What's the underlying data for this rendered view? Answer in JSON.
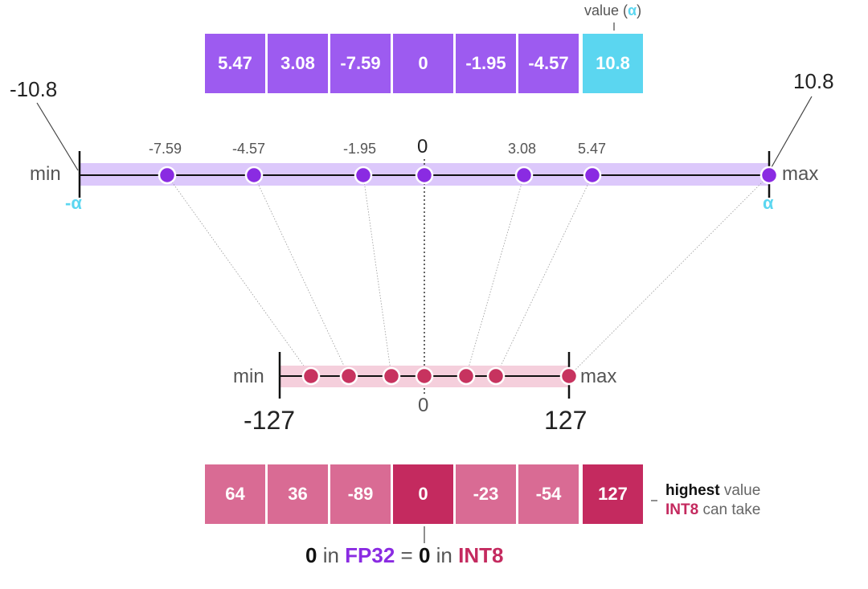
{
  "top_note": {
    "text": "value (",
    "alpha": "α",
    "close": ")"
  },
  "fp32_cells": [
    "5.47",
    "3.08",
    "-7.59",
    "0",
    "-1.95",
    "-4.57",
    "10.8"
  ],
  "int8_cells": [
    "64",
    "36",
    "-89",
    "0",
    "-23",
    "-54",
    "127"
  ],
  "fp32_axis": {
    "min_value": "-10.8",
    "max_value": "10.8",
    "min_label": "min",
    "max_label": "max",
    "neg_alpha": "-α",
    "pos_alpha": "α",
    "zero": "0",
    "tick_values": [
      "-7.59",
      "-4.57",
      "-1.95",
      "3.08",
      "5.47"
    ]
  },
  "int8_axis": {
    "min_label": "min",
    "max_label": "max",
    "min_value": "-127",
    "max_value": "127",
    "zero": "0"
  },
  "int8_note": {
    "bold": "highest",
    "line1_rest": " value",
    "int8": "INT8",
    "line2_rest": " can take"
  },
  "bottom_caption": {
    "zero_a": "0",
    "in_a": " in ",
    "fp32": "FP32",
    "eq": " = ",
    "zero_b": "0",
    "in_b": " in ",
    "int8": "INT8"
  },
  "colors": {
    "purple": "#9d5bf0",
    "cyan": "#5bd6f0",
    "int8_light": "#d96b94",
    "int8_dark": "#c42a5f",
    "dot_purple": "#8a2be2",
    "dot_pink": "#c7335f",
    "band_purple": "#dcc8fb",
    "band_pink": "#f5cfdc"
  }
}
